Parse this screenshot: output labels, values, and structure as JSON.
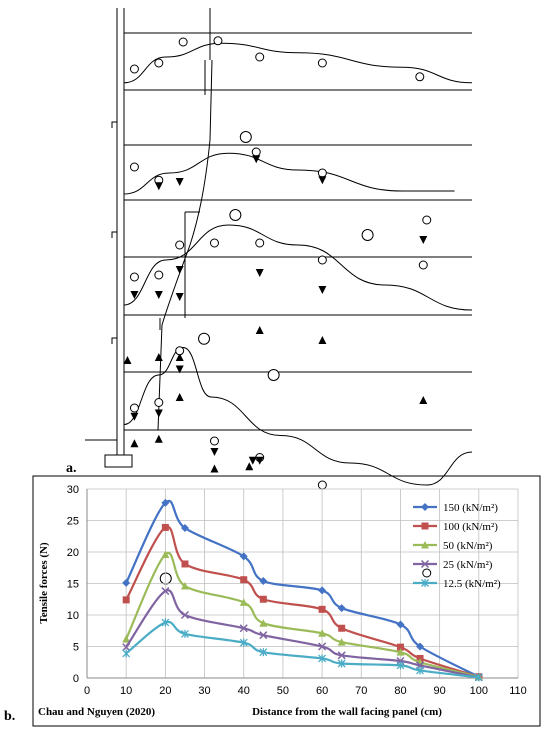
{
  "panels": {
    "a_label": "a.",
    "b_label": "b."
  },
  "schematic": {
    "bands": [
      {
        "y_curve": [
          [
            0,
            0.12
          ],
          [
            0.12,
            0.55
          ],
          [
            0.28,
            0.78
          ],
          [
            0.5,
            0.62
          ],
          [
            0.8,
            0.38
          ],
          [
            1.0,
            0.12
          ]
        ],
        "circles": [
          [
            0.03,
            0.35,
            "s"
          ],
          [
            0.1,
            0.45,
            "s"
          ],
          [
            0.17,
            0.8,
            "s"
          ],
          [
            0.27,
            0.82,
            "s"
          ],
          [
            0.39,
            0.55,
            "s"
          ],
          [
            0.57,
            0.45,
            "s"
          ],
          [
            0.85,
            0.22,
            "s"
          ]
        ]
      },
      {
        "y_curve": [
          [
            0,
            0.1
          ],
          [
            0.13,
            0.45
          ],
          [
            0.3,
            0.78
          ],
          [
            0.5,
            0.5
          ],
          [
            0.8,
            0.15
          ],
          [
            0.95,
            0.15
          ]
        ],
        "circles": [
          [
            0.03,
            0.55,
            "s"
          ],
          [
            0.1,
            0.33,
            "s"
          ],
          [
            0.38,
            0.8,
            "s"
          ],
          [
            0.57,
            0.45,
            "s"
          ],
          [
            0.35,
            1.05,
            "m"
          ]
        ],
        "down": [
          [
            0.1,
            0.23
          ],
          [
            0.16,
            0.3
          ],
          [
            0.38,
            0.68
          ],
          [
            0.57,
            0.33
          ]
        ]
      },
      {
        "y_curve": [
          [
            0,
            0.1
          ],
          [
            0.12,
            0.55
          ],
          [
            0.3,
            0.9
          ],
          [
            0.5,
            0.7
          ],
          [
            0.75,
            0.3
          ],
          [
            1.0,
            0.05
          ]
        ],
        "circles": [
          [
            0.03,
            0.38,
            "s"
          ],
          [
            0.1,
            0.4,
            "s"
          ],
          [
            0.16,
            0.7,
            "s"
          ],
          [
            0.26,
            0.72,
            "s"
          ],
          [
            0.39,
            0.72,
            "s"
          ],
          [
            0.57,
            0.55,
            "s"
          ],
          [
            0.7,
            0.8,
            "m"
          ],
          [
            0.87,
            0.95,
            "s"
          ],
          [
            0.86,
            0.5,
            "s"
          ],
          [
            0.32,
            1.0,
            "m"
          ]
        ],
        "down": [
          [
            0.03,
            0.2
          ],
          [
            0.1,
            0.2
          ],
          [
            0.16,
            0.18
          ],
          [
            0.16,
            0.45
          ],
          [
            0.39,
            0.42
          ],
          [
            0.57,
            0.25
          ],
          [
            0.86,
            0.75
          ]
        ],
        "up": [
          [
            0.01,
            -0.45
          ],
          [
            0.1,
            -0.42
          ],
          [
            0.16,
            -0.42
          ],
          [
            0.39,
            -0.15
          ],
          [
            0.57,
            -0.25
          ],
          [
            0.86,
            -0.85
          ]
        ]
      },
      {
        "y_curve": [
          [
            0,
            0.05
          ],
          [
            0.1,
            0.5
          ],
          [
            0.17,
            0.75
          ],
          [
            0.25,
            0.3
          ],
          [
            0.45,
            -0.05
          ],
          [
            0.65,
            -0.3
          ],
          [
            0.87,
            -0.5
          ],
          [
            1.0,
            -0.2
          ]
        ],
        "circles": [
          [
            0.03,
            0.2,
            "s"
          ],
          [
            0.1,
            0.25,
            "s"
          ],
          [
            0.16,
            0.72,
            "s"
          ],
          [
            0.23,
            0.83,
            "m"
          ],
          [
            0.43,
            0.5,
            "m"
          ],
          [
            0.26,
            -0.1,
            "s"
          ],
          [
            0.39,
            -0.25,
            "s"
          ],
          [
            0.57,
            -0.5,
            "s"
          ],
          [
            0.87,
            -1.3,
            "s"
          ],
          [
            0.12,
            -1.35,
            "m"
          ]
        ],
        "down": [
          [
            0.03,
            0.12
          ],
          [
            0.1,
            0.15
          ],
          [
            0.16,
            0.55
          ],
          [
            0.26,
            -0.2
          ],
          [
            0.37,
            -0.28
          ],
          [
            0.39,
            -0.28
          ]
        ],
        "up": [
          [
            0.03,
            -0.12
          ],
          [
            0.1,
            -0.08
          ],
          [
            0.16,
            0.3
          ],
          [
            0.26,
            -0.35
          ],
          [
            0.36,
            -0.33
          ]
        ]
      }
    ]
  },
  "chart_data": {
    "type": "line",
    "xlabel": "Distance from the wall facing panel (cm)",
    "ylabel": "Tensile forces (N)",
    "source_note": "Chau and Nguyen (2020)",
    "xlim": [
      0,
      110
    ],
    "ylim": [
      0,
      30
    ],
    "xticks": [
      0,
      10,
      20,
      30,
      40,
      50,
      60,
      70,
      80,
      90,
      100,
      110
    ],
    "yticks": [
      0,
      5,
      10,
      15,
      20,
      25,
      30
    ],
    "grid": true,
    "legend_position": "top-right",
    "x": [
      10,
      20,
      25,
      40,
      45,
      60,
      65,
      80,
      85,
      100
    ],
    "series": [
      {
        "name": "150 (kN/m²)",
        "color": "#4472C4",
        "marker": "diamond",
        "values": [
          15.1,
          27.8,
          23.8,
          19.3,
          15.4,
          13.9,
          11.1,
          8.5,
          5.0,
          0.2
        ]
      },
      {
        "name": "100 (kN/m²)",
        "color": "#C0504D",
        "marker": "square",
        "values": [
          12.4,
          23.9,
          18.1,
          15.6,
          12.5,
          10.9,
          7.9,
          4.9,
          3.1,
          0.2
        ]
      },
      {
        "name": "50 (kN/m²)",
        "color": "#9BBB59",
        "marker": "triangle",
        "values": [
          6.2,
          19.6,
          14.6,
          12.0,
          8.7,
          7.1,
          5.7,
          4.1,
          2.5,
          0.2
        ]
      },
      {
        "name": "25 (kN/m²)",
        "color": "#8064A2",
        "marker": "x",
        "values": [
          4.9,
          13.8,
          10.0,
          7.9,
          6.8,
          5.0,
          3.6,
          2.7,
          2.0,
          0.1
        ]
      },
      {
        "name": "12.5 (kN/m²)",
        "color": "#4BACC6",
        "marker": "star",
        "values": [
          3.9,
          8.8,
          7.0,
          5.6,
          4.1,
          3.1,
          2.3,
          2.0,
          1.2,
          0.1
        ]
      }
    ]
  }
}
